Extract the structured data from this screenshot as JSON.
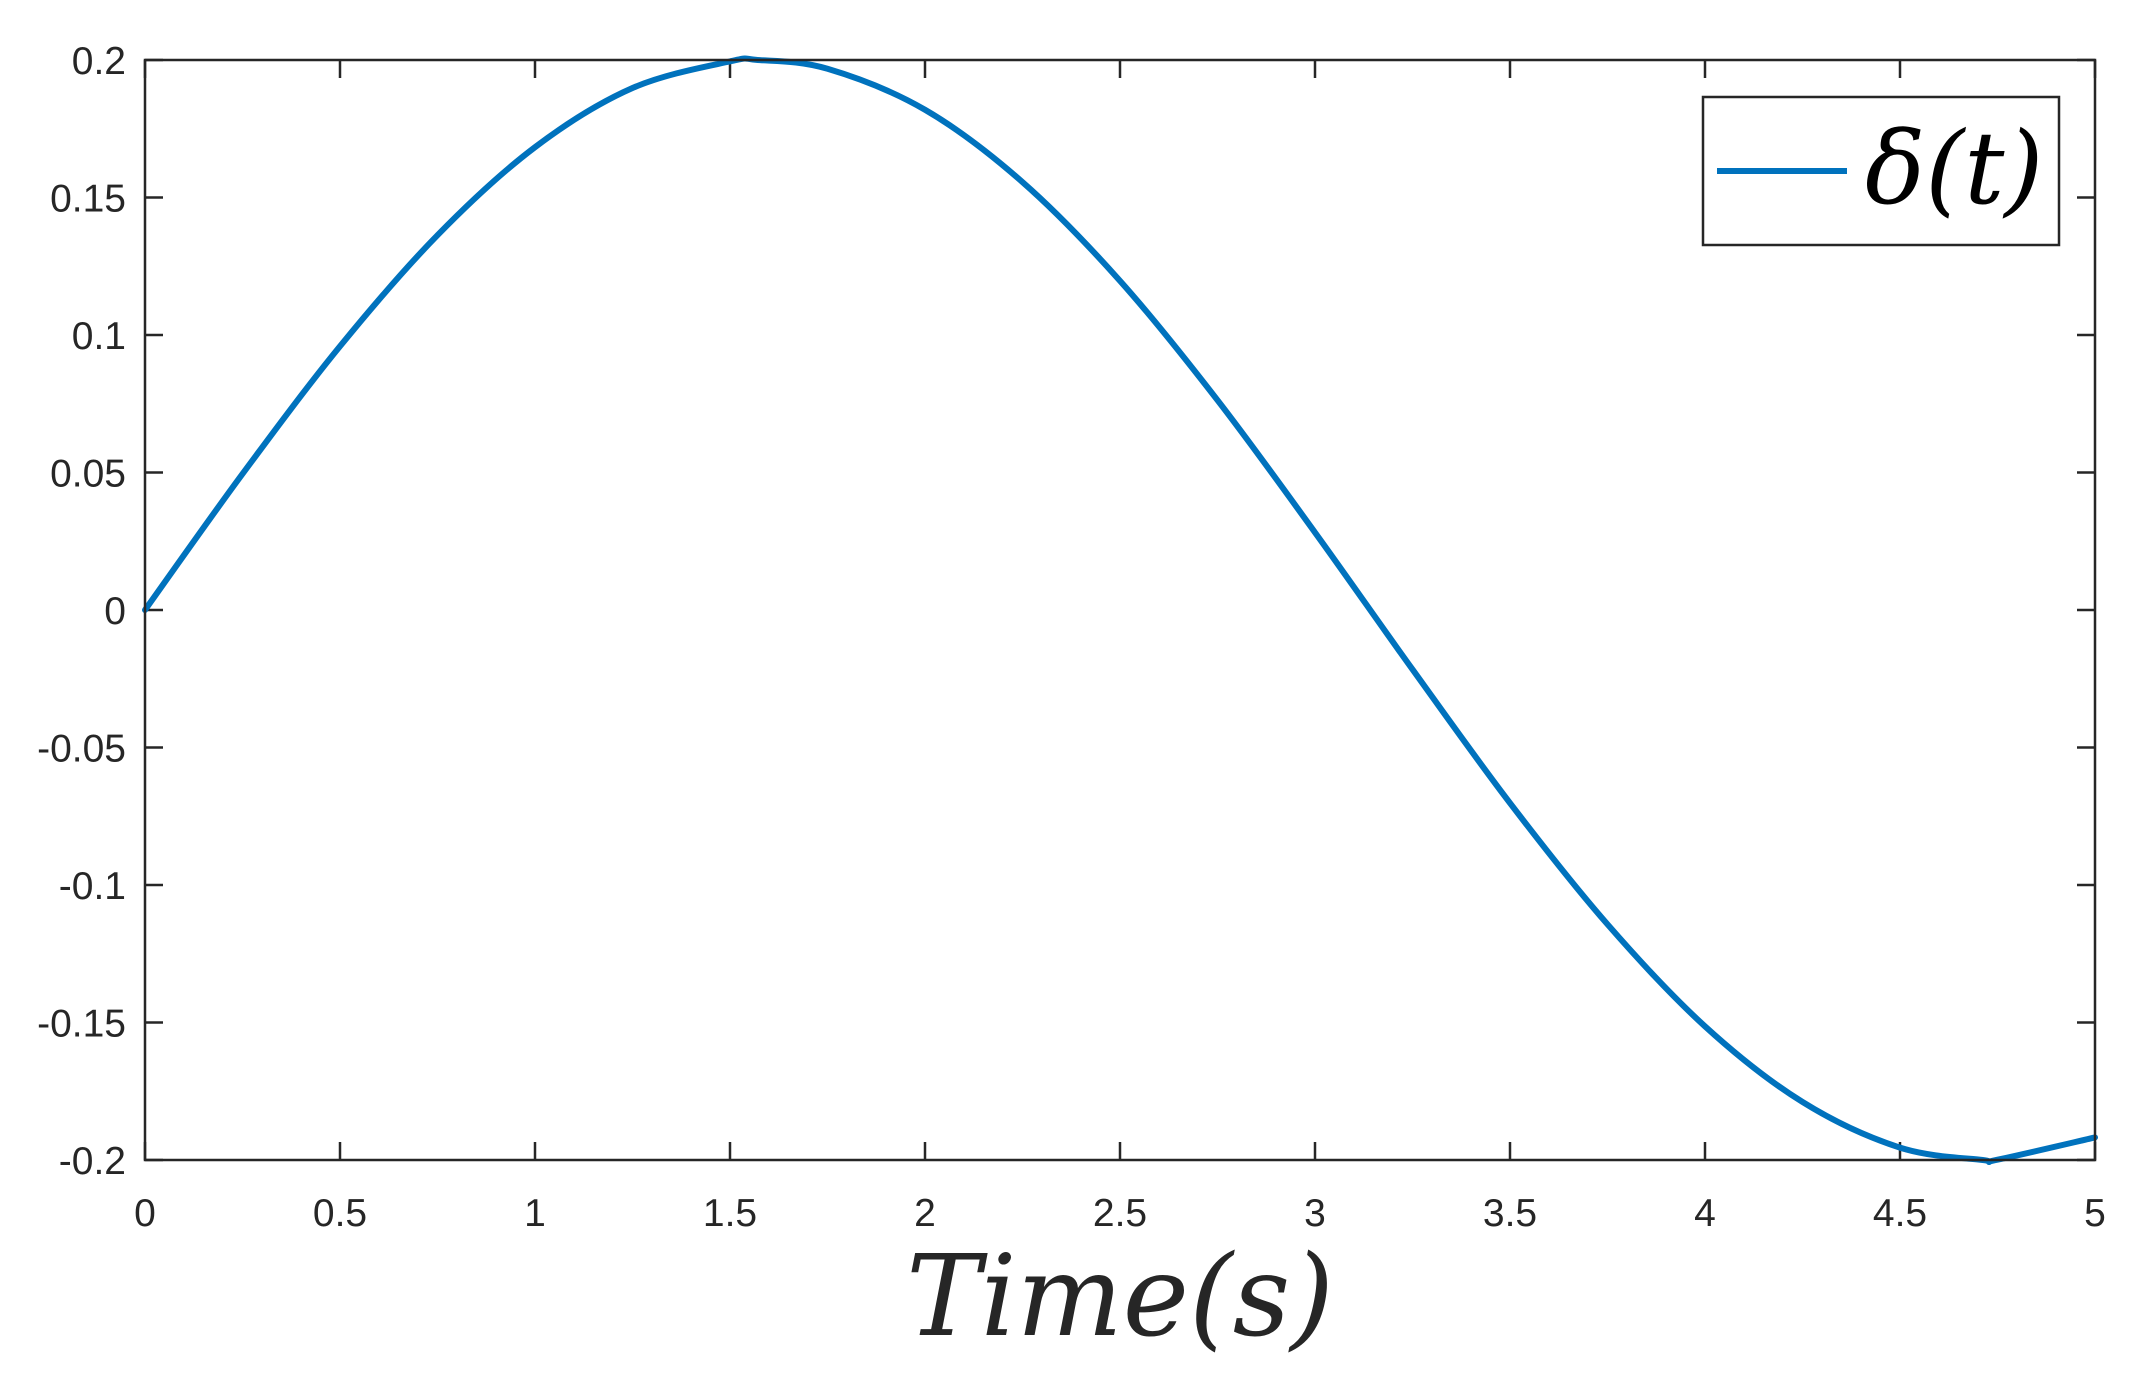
{
  "chart_data": {
    "type": "line",
    "title": "",
    "xlabel": "Time(s)",
    "ylabel": "",
    "xlim": [
      0,
      5
    ],
    "ylim": [
      -0.2,
      0.2
    ],
    "x_ticks": [
      "0",
      "0.5",
      "1",
      "1.5",
      "2",
      "2.5",
      "3",
      "3.5",
      "4",
      "4.5",
      "5"
    ],
    "y_ticks": [
      "0.2",
      "0.15",
      "0.1",
      "0.05",
      "0",
      "-0.05",
      "-0.1",
      "-0.15",
      "-0.2"
    ],
    "grid": false,
    "legend_position": "top-right",
    "series": [
      {
        "name": "δ(t)",
        "color": "#0072BD",
        "x": [
          0,
          0.25,
          0.5,
          0.75,
          1,
          1.25,
          1.5,
          1.571,
          1.75,
          2,
          2.25,
          2.5,
          2.75,
          3,
          3.25,
          3.5,
          3.75,
          4,
          4.25,
          4.5,
          4.712,
          4.75,
          5
        ],
        "y": [
          0,
          0.0495,
          0.0959,
          0.1363,
          0.1683,
          0.1898,
          0.1995,
          0.2,
          0.1968,
          0.1819,
          0.1556,
          0.1197,
          0.0763,
          0.0282,
          -0.0216,
          -0.0702,
          -0.1143,
          -0.1514,
          -0.1789,
          -0.1955,
          -0.2,
          -0.1999,
          -0.1918
        ]
      }
    ]
  }
}
